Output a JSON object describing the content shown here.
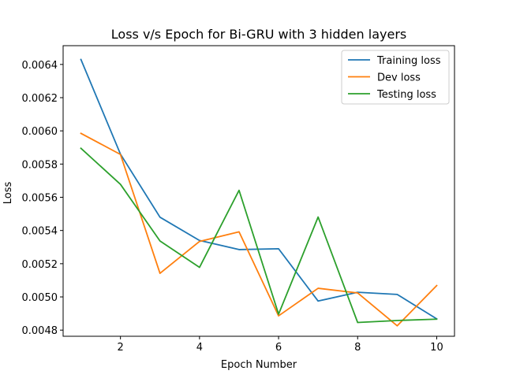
{
  "chart_data": {
    "type": "line",
    "title": "Loss v/s Epoch for Bi-GRU with 3 hidden layers",
    "xlabel": "Epoch Number",
    "ylabel": "Loss",
    "x": [
      1,
      2,
      3,
      4,
      5,
      6,
      7,
      8,
      9,
      10
    ],
    "xlim": [
      0.55,
      10.45
    ],
    "ylim": [
      0.004763,
      0.006513
    ],
    "xticks": [
      2,
      4,
      6,
      8,
      10
    ],
    "xtick_labels": [
      "2",
      "4",
      "6",
      "8",
      "10"
    ],
    "yticks": [
      0.0048,
      0.005,
      0.0052,
      0.0054,
      0.0056,
      0.0058,
      0.006,
      0.0062,
      0.0064
    ],
    "ytick_labels": [
      "0.0048",
      "0.0050",
      "0.0052",
      "0.0054",
      "0.0056",
      "0.0058",
      "0.0060",
      "0.0062",
      "0.0064"
    ],
    "grid": false,
    "legend_position": "top-right",
    "series": [
      {
        "name": "Training loss",
        "color": "#1f77b4",
        "values": [
          0.00643,
          0.00586,
          0.00548,
          0.00534,
          0.005285,
          0.00529,
          0.004975,
          0.005028,
          0.005015,
          0.004868
        ]
      },
      {
        "name": "Dev loss",
        "color": "#ff7f0e",
        "values": [
          0.005985,
          0.005858,
          0.005142,
          0.005334,
          0.005392,
          0.004886,
          0.005052,
          0.005024,
          0.004826,
          0.005068
        ]
      },
      {
        "name": "Testing loss",
        "color": "#2ca02c",
        "values": [
          0.005895,
          0.005678,
          0.005337,
          0.005178,
          0.005642,
          0.004896,
          0.005481,
          0.004846,
          0.004858,
          0.004866
        ]
      }
    ]
  }
}
